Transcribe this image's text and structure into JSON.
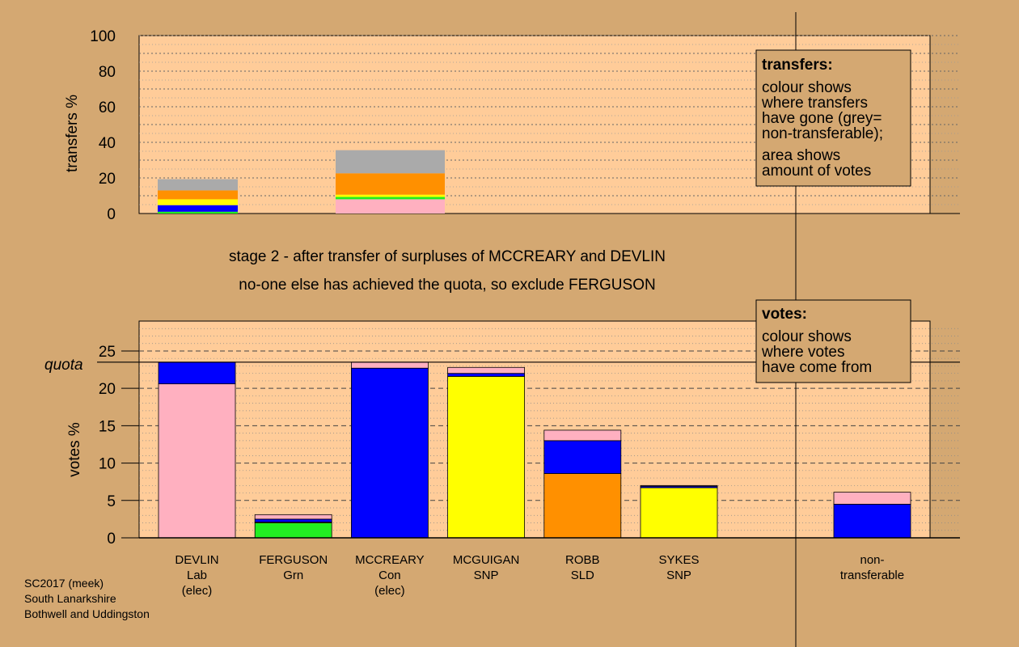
{
  "colors": {
    "background": "#d4a872",
    "plot_bg": "#ffcc99",
    "box_bg": "#d4a872",
    "Lab": "#ffb0c0",
    "Con": "#0000ff",
    "SNP": "#ffff00",
    "LD": "#ff9000",
    "Grn": "#22ee22",
    "nontransferable": "#aaaaaa"
  },
  "stage_text": [
    "stage 2 - after transfer of surpluses of MCCREARY and DEVLIN",
    "no-one else has achieved the quota, so exclude FERGUSON"
  ],
  "transfers_box": {
    "title": "transfers:",
    "lines1": [
      "colour shows",
      "where transfers",
      "have gone (grey=",
      "non-transferable);"
    ],
    "lines2": [
      "area shows",
      "amount of votes"
    ]
  },
  "votes_box": {
    "title": "votes:",
    "lines": [
      "colour shows",
      "where votes",
      "have come from"
    ]
  },
  "footer": [
    "SC2017 (meek)",
    "South Lanarkshire",
    "Bothwell and Uddingston"
  ],
  "chart_data": [
    {
      "type": "bar",
      "ylabel": "transfers %",
      "ylim": [
        0,
        100
      ],
      "yticks": [
        "0",
        "20",
        "40",
        "60",
        "80",
        "100"
      ],
      "columns": [
        {
          "candidate": "DEVLIN",
          "segments": [
            {
              "party": "Grn",
              "value": 1.0
            },
            {
              "party": "Con",
              "value": 3.7
            },
            {
              "party": "SNP",
              "value": 3.3
            },
            {
              "party": "LD",
              "value": 5.0
            },
            {
              "party": "nontransferable",
              "value": 6.3
            }
          ]
        },
        {
          "candidate": "MCCREARY",
          "segments": [
            {
              "party": "Lab",
              "value": 8.0
            },
            {
              "party": "Grn",
              "value": 1.3
            },
            {
              "party": "SNP",
              "value": 1.3
            },
            {
              "party": "LD",
              "value": 12.0
            },
            {
              "party": "nontransferable",
              "value": 13.0
            }
          ]
        }
      ]
    },
    {
      "type": "bar",
      "ylabel": "votes %",
      "ylim": [
        0,
        29
      ],
      "yticks": [
        "0",
        "5",
        "10",
        "15",
        "20",
        "25"
      ],
      "quota": 23.5,
      "quota_label": "quota",
      "candidates": [
        {
          "name": "DEVLIN",
          "party": "Lab",
          "note": "(elec)",
          "segments": [
            {
              "party": "Lab",
              "value": 20.6
            },
            {
              "party": "Con",
              "value": 2.9
            }
          ]
        },
        {
          "name": "FERGUSON",
          "party": "Grn",
          "note": "",
          "segments": [
            {
              "party": "Grn",
              "value": 2.0
            },
            {
              "party": "SNP",
              "value": 0.1
            },
            {
              "party": "Con",
              "value": 0.4
            },
            {
              "party": "Lab",
              "value": 0.6
            }
          ]
        },
        {
          "name": "MCCREARY",
          "party": "Con",
          "note": "(elec)",
          "segments": [
            {
              "party": "Con",
              "value": 22.7
            },
            {
              "party": "Lab",
              "value": 0.8
            }
          ]
        },
        {
          "name": "MCGUIGAN",
          "party": "SNP",
          "note": "",
          "segments": [
            {
              "party": "SNP",
              "value": 21.6
            },
            {
              "party": "Con",
              "value": 0.4
            },
            {
              "party": "Lab",
              "value": 0.8
            }
          ]
        },
        {
          "name": "ROBB",
          "party": "SLD",
          "note": "",
          "segments": [
            {
              "party": "LD",
              "value": 8.6
            },
            {
              "party": "Con",
              "value": 4.4
            },
            {
              "party": "Lab",
              "value": 1.4
            }
          ]
        },
        {
          "name": "SYKES",
          "party": "SNP",
          "note": "",
          "segments": [
            {
              "party": "SNP",
              "value": 6.7
            },
            {
              "party": "Con",
              "value": 0.2
            },
            {
              "party": "Lab",
              "value": 0.1
            }
          ]
        }
      ],
      "nontransferable": {
        "label_line1": "non-",
        "label_line2": "transferable",
        "segments": [
          {
            "party": "Con",
            "value": 4.5
          },
          {
            "party": "Lab",
            "value": 1.6
          }
        ]
      }
    }
  ]
}
